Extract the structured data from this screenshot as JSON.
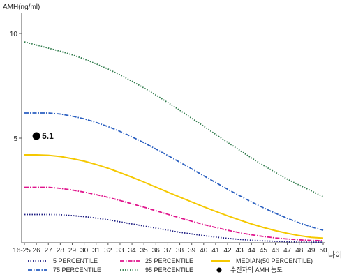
{
  "chart_data": {
    "type": "line",
    "ylabel": "AMH(ng/ml)",
    "xlabel": "나이",
    "ylim": [
      0,
      11
    ],
    "yticks": [
      {
        "value": 5,
        "label": "5"
      },
      {
        "value": 10,
        "label": "10"
      }
    ],
    "categories": [
      "16-25",
      "26",
      "27",
      "28",
      "29",
      "30",
      "31",
      "32",
      "33",
      "34",
      "35",
      "36",
      "37",
      "38",
      "39",
      "40",
      "41",
      "42",
      "43",
      "44",
      "45",
      "46",
      "47",
      "48",
      "49",
      "50"
    ],
    "grid": false,
    "legend_position": "bottom",
    "series": [
      {
        "name": "5 PERCENTILE",
        "color": "#1a1a80",
        "dash": "1.5,2",
        "values": [
          1.35,
          1.35,
          1.35,
          1.34,
          1.3,
          1.25,
          1.18,
          1.1,
          1.0,
          0.9,
          0.8,
          0.7,
          0.6,
          0.5,
          0.42,
          0.34,
          0.27,
          0.21,
          0.16,
          0.12,
          0.09,
          0.07,
          0.05,
          0.04,
          0.03,
          0.03
        ]
      },
      {
        "name": "25 PERCENTILE",
        "color": "#e0148c",
        "dash": "6,2,1.5,2",
        "values": [
          2.65,
          2.65,
          2.65,
          2.6,
          2.52,
          2.42,
          2.3,
          2.17,
          2.02,
          1.86,
          1.7,
          1.53,
          1.36,
          1.19,
          1.03,
          0.87,
          0.73,
          0.6,
          0.48,
          0.38,
          0.3,
          0.23,
          0.18,
          0.14,
          0.11,
          0.1
        ]
      },
      {
        "name": "MEDIAN(50 PERCENTILE)",
        "color": "#f5c800",
        "dash": "",
        "values": [
          4.2,
          4.2,
          4.18,
          4.12,
          4.02,
          3.9,
          3.74,
          3.56,
          3.35,
          3.13,
          2.9,
          2.66,
          2.42,
          2.18,
          1.95,
          1.72,
          1.5,
          1.29,
          1.09,
          0.9,
          0.73,
          0.58,
          0.45,
          0.34,
          0.26,
          0.22
        ]
      },
      {
        "name": "75 PERCENTILE",
        "color": "#2a5fc0",
        "dash": "6,2,1.5,2",
        "values": [
          6.2,
          6.2,
          6.2,
          6.15,
          6.05,
          5.92,
          5.75,
          5.55,
          5.32,
          5.06,
          4.78,
          4.48,
          4.17,
          3.85,
          3.53,
          3.2,
          2.88,
          2.56,
          2.25,
          1.95,
          1.67,
          1.41,
          1.17,
          0.95,
          0.76,
          0.6
        ]
      },
      {
        "name": "95 PERCENTILE",
        "color": "#2e7a4a",
        "dash": "1.5,2",
        "values": [
          9.6,
          9.45,
          9.3,
          9.15,
          8.98,
          8.78,
          8.55,
          8.3,
          8.02,
          7.72,
          7.4,
          7.06,
          6.7,
          6.33,
          5.95,
          5.57,
          5.18,
          4.8,
          4.42,
          4.05,
          3.7,
          3.36,
          3.04,
          2.75,
          2.48,
          2.2
        ]
      }
    ],
    "points": [
      {
        "name": "수진자의 AMH 농도",
        "category": "26",
        "value": 5.1,
        "label": "5.1",
        "color": "#000000"
      }
    ]
  }
}
